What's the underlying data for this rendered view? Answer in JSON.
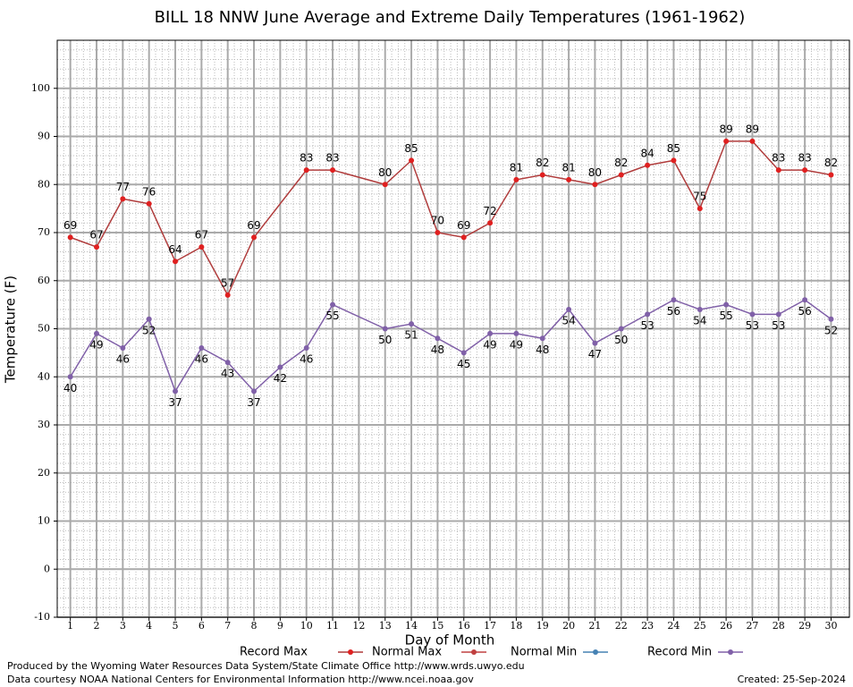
{
  "chart_data": {
    "type": "line",
    "title": "BILL 18 NNW June Average and Extreme Daily Temperatures (1961-1962)",
    "xlabel": "Day of Month",
    "ylabel": "Temperature (F)",
    "xlim": [
      0.5,
      30.7
    ],
    "xticks": [
      1,
      2,
      3,
      4,
      5,
      6,
      7,
      8,
      9,
      10,
      11,
      12,
      13,
      14,
      15,
      16,
      17,
      18,
      19,
      20,
      21,
      22,
      23,
      24,
      25,
      26,
      27,
      28,
      29,
      30
    ],
    "ylim": [
      -10,
      110
    ],
    "yticks": [
      -10,
      0,
      10,
      20,
      30,
      40,
      50,
      60,
      70,
      80,
      90,
      100
    ],
    "grid": true,
    "series": [
      {
        "name": "Record Max",
        "color": "#b03c3c",
        "marker_color": "#e02020",
        "label_position": "above",
        "x": [
          1,
          2,
          3,
          4,
          5,
          6,
          7,
          8,
          10,
          11,
          13,
          14,
          15,
          16,
          17,
          18,
          19,
          20,
          21,
          22,
          23,
          24,
          25,
          26,
          27,
          28,
          29,
          30
        ],
        "values": [
          69,
          67,
          77,
          76,
          64,
          67,
          57,
          69,
          83,
          83,
          80,
          85,
          70,
          69,
          72,
          81,
          82,
          81,
          80,
          82,
          84,
          85,
          75,
          89,
          89,
          83,
          83,
          82
        ]
      },
      {
        "name": "Normal Max",
        "color": "#c04040",
        "marker_color": "#c04040",
        "x": [],
        "values": []
      },
      {
        "name": "Normal Min",
        "color": "#4682b4",
        "marker_color": "#4682b4",
        "x": [],
        "values": []
      },
      {
        "name": "Record Min",
        "color": "#8060a8",
        "marker_color": "#8060a8",
        "label_position": "below",
        "x": [
          1,
          2,
          3,
          4,
          5,
          6,
          7,
          8,
          9,
          10,
          11,
          13,
          14,
          15,
          16,
          17,
          18,
          19,
          20,
          21,
          22,
          23,
          24,
          25,
          26,
          27,
          28,
          29,
          30
        ],
        "values": [
          40,
          49,
          46,
          52,
          37,
          46,
          43,
          37,
          42,
          46,
          55,
          50,
          51,
          48,
          45,
          49,
          49,
          48,
          54,
          47,
          50,
          53,
          56,
          54,
          55,
          53,
          53,
          56,
          52
        ]
      }
    ],
    "footer_left": [
      "Produced by the Wyoming Water Resources Data System/State Climate Office http://www.wrds.uwyo.edu",
      "Data courtesy NOAA National Centers for Environmental Information http://www.ncei.noaa.gov"
    ],
    "footer_right": "Created:  25-Sep-2024"
  }
}
